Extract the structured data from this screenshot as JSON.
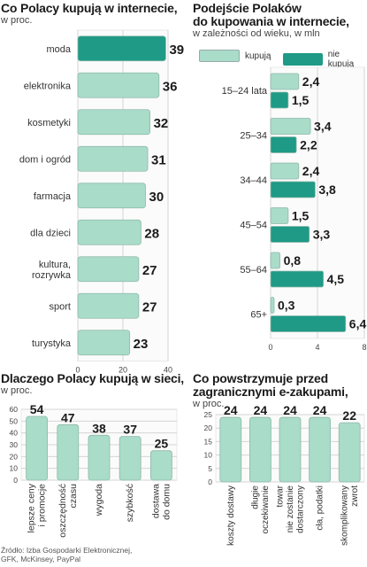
{
  "colors": {
    "light": "#a9dcc9",
    "dark": "#1e9a86",
    "grid": "#d6d6d6",
    "frame": "#e8e8e8"
  },
  "source": [
    "Źródło: Izba Gospodarki Elektronicznej,",
    "GFK, McKinsey, PayPal"
  ],
  "chart_data": [
    {
      "type": "bar",
      "orientation": "horizontal",
      "title": "Co Polacy kupują w internecie,",
      "subtitle": "w proc.",
      "categories": [
        "moda",
        "elektronika",
        "kosmetyki",
        "dom i ogród",
        "farmacja",
        "dla dzieci",
        "kultura,\nrozrywka",
        "sport",
        "turystyka"
      ],
      "values": [
        39,
        36,
        32,
        31,
        30,
        28,
        27,
        27,
        23
      ],
      "highlight_index": 0,
      "xlim": [
        0,
        40
      ],
      "xticks": [
        "0",
        "20",
        "40"
      ]
    },
    {
      "type": "bar",
      "orientation": "horizontal",
      "title": "Podejście Polaków\ndo kupowania w internecie,",
      "subtitle": "w zależności od wieku, w mln",
      "categories": [
        "15–24 lata",
        "25–34",
        "34–44",
        "45–54",
        "55–64",
        "65+"
      ],
      "series": [
        {
          "name": "kupują",
          "values": [
            "2,4",
            "3,4",
            "2,4",
            "1,5",
            "0,8",
            "0,3"
          ]
        },
        {
          "name": "nie kupują",
          "values": [
            "1,5",
            "2,2",
            "3,8",
            "3,3",
            "4,5",
            "6,4"
          ]
        }
      ],
      "xlim": [
        0,
        8
      ],
      "xticks": [
        "0",
        "4",
        "8"
      ],
      "legend": "top"
    },
    {
      "type": "bar",
      "orientation": "vertical",
      "title": "Dlaczego Polacy kupują w sieci,",
      "subtitle": "w proc.",
      "categories": [
        "lepsze ceny\ni promocje",
        "oszczędność\nczasu",
        "wygoda",
        "szybkość",
        "dostawa\ndo domu"
      ],
      "values": [
        54,
        47,
        38,
        37,
        25
      ],
      "ylim": [
        0,
        60
      ],
      "yticks": [
        "0",
        "10",
        "20",
        "30",
        "40",
        "50",
        "60"
      ]
    },
    {
      "type": "bar",
      "orientation": "vertical",
      "title": "Co powstrzymuje przed\nzagranicznymi e-zakupami,",
      "subtitle": "w proc.",
      "categories": [
        "koszty dostawy",
        "długie\noczekiwanie",
        "towar\nnie zostanie\ndostarczony",
        "cła, podatki",
        "skomplikowany\nzwrot"
      ],
      "values": [
        24,
        24,
        24,
        24,
        22
      ],
      "ylim": [
        0,
        25
      ],
      "yticks": [
        "0",
        "5",
        "10",
        "15",
        "20",
        "25"
      ]
    }
  ]
}
